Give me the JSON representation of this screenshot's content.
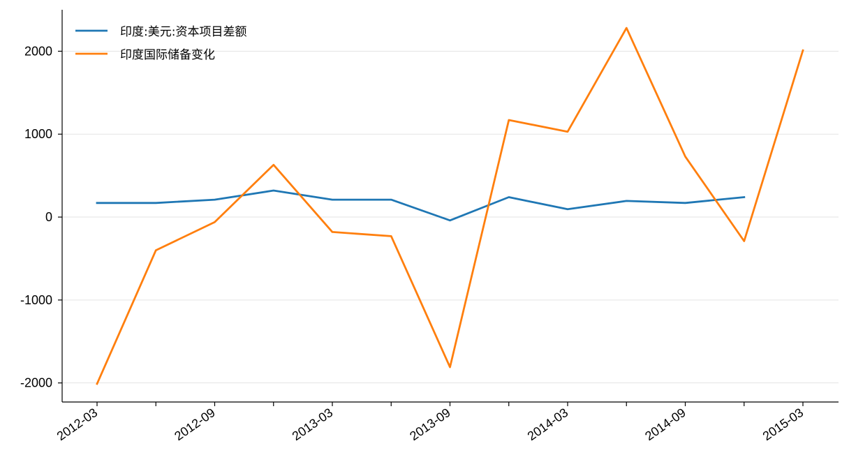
{
  "chart_data": {
    "type": "line",
    "x": [
      "2012-03",
      "2012-06",
      "2012-09",
      "2012-12",
      "2013-03",
      "2013-06",
      "2013-09",
      "2013-12",
      "2014-03",
      "2014-06",
      "2014-09",
      "2014-12",
      "2015-03"
    ],
    "x_tick_labels": [
      "2012-03",
      "2012-09",
      "2013-03",
      "2013-09",
      "2014-03",
      "2014-09",
      "2015-03"
    ],
    "ylim": [
      -2230,
      2500
    ],
    "y_ticks": [
      -2000,
      -1000,
      0,
      1000,
      2000
    ],
    "y_tick_labels": [
      "-2000",
      "-1000",
      "0",
      "1000",
      "2000"
    ],
    "grid": "horizontal",
    "legend_position": "upper-left",
    "series": [
      {
        "name": "印度:美元:资本项目差额",
        "color": "#1f77b4",
        "values": [
          170,
          170,
          210,
          320,
          210,
          210,
          -40,
          240,
          95,
          195,
          170,
          240,
          null
        ]
      },
      {
        "name": "印度国际储备变化",
        "color": "#ff7f0e",
        "values": [
          -2010,
          -400,
          -60,
          630,
          -180,
          -230,
          -1810,
          1170,
          1030,
          2280,
          730,
          -290,
          2010
        ]
      }
    ]
  }
}
